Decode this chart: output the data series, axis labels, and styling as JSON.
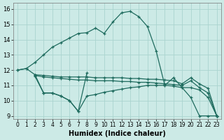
{
  "xlabel": "Humidex (Indice chaleur)",
  "bg_color": "#cceae6",
  "grid_color": "#aad4cf",
  "line_color": "#1e6b5e",
  "xlim": [
    -0.5,
    23.5
  ],
  "ylim": [
    8.8,
    16.4
  ],
  "xticks": [
    0,
    1,
    2,
    3,
    4,
    5,
    6,
    7,
    8,
    9,
    10,
    11,
    12,
    13,
    14,
    15,
    16,
    17,
    18,
    19,
    20,
    21,
    22,
    23
  ],
  "yticks": [
    9,
    10,
    11,
    12,
    13,
    14,
    15,
    16
  ],
  "main_x": [
    0,
    1,
    2,
    3,
    4,
    5,
    6,
    7,
    8,
    9,
    10,
    11,
    12,
    13,
    14,
    15,
    16,
    17,
    18,
    19,
    20,
    21,
    22,
    23
  ],
  "main_y": [
    12.0,
    12.1,
    12.5,
    13.0,
    13.5,
    13.8,
    14.1,
    14.4,
    14.45,
    14.75,
    14.4,
    15.15,
    15.75,
    15.85,
    15.5,
    14.85,
    13.25,
    11.0,
    11.5,
    10.85,
    10.2,
    9.0,
    9.0,
    9.0
  ],
  "line_upper_x": [
    2,
    3,
    4,
    5,
    6,
    7,
    8,
    9,
    10,
    11,
    12,
    13,
    14,
    15,
    16,
    17,
    18,
    19,
    20,
    21,
    22,
    23
  ],
  "line_upper_y": [
    11.7,
    11.65,
    11.6,
    11.55,
    11.55,
    11.55,
    11.55,
    11.5,
    11.5,
    11.5,
    11.5,
    11.45,
    11.45,
    11.4,
    11.4,
    11.35,
    11.3,
    11.1,
    11.5,
    11.1,
    10.8,
    9.0
  ],
  "line_mid_x": [
    2,
    3,
    4,
    5,
    6,
    7,
    8,
    9,
    10,
    11,
    12,
    13,
    14,
    15,
    16,
    17,
    18,
    19,
    20,
    21,
    22,
    23
  ],
  "line_mid_y": [
    11.65,
    11.55,
    11.5,
    11.45,
    11.4,
    11.35,
    11.35,
    11.3,
    11.3,
    11.3,
    11.25,
    11.25,
    11.2,
    11.2,
    11.15,
    11.1,
    11.05,
    11.0,
    11.3,
    10.85,
    10.5,
    9.0
  ],
  "line_low_x": [
    2,
    3,
    4,
    5,
    6,
    7,
    8,
    9,
    10,
    11,
    12,
    13,
    14,
    15,
    16,
    17,
    18,
    19,
    20,
    21,
    22,
    23
  ],
  "line_low_y": [
    11.6,
    10.5,
    10.5,
    10.3,
    10.0,
    9.3,
    10.3,
    10.4,
    10.55,
    10.65,
    10.75,
    10.85,
    10.9,
    11.0,
    11.0,
    11.0,
    10.95,
    10.85,
    10.85,
    10.7,
    10.2,
    9.0
  ],
  "line_zigzag_x": [
    0,
    1,
    2,
    3,
    4,
    5,
    6,
    7,
    8
  ],
  "line_zigzag_y": [
    12.0,
    12.1,
    11.7,
    10.5,
    10.5,
    10.3,
    10.0,
    9.3,
    11.8
  ]
}
